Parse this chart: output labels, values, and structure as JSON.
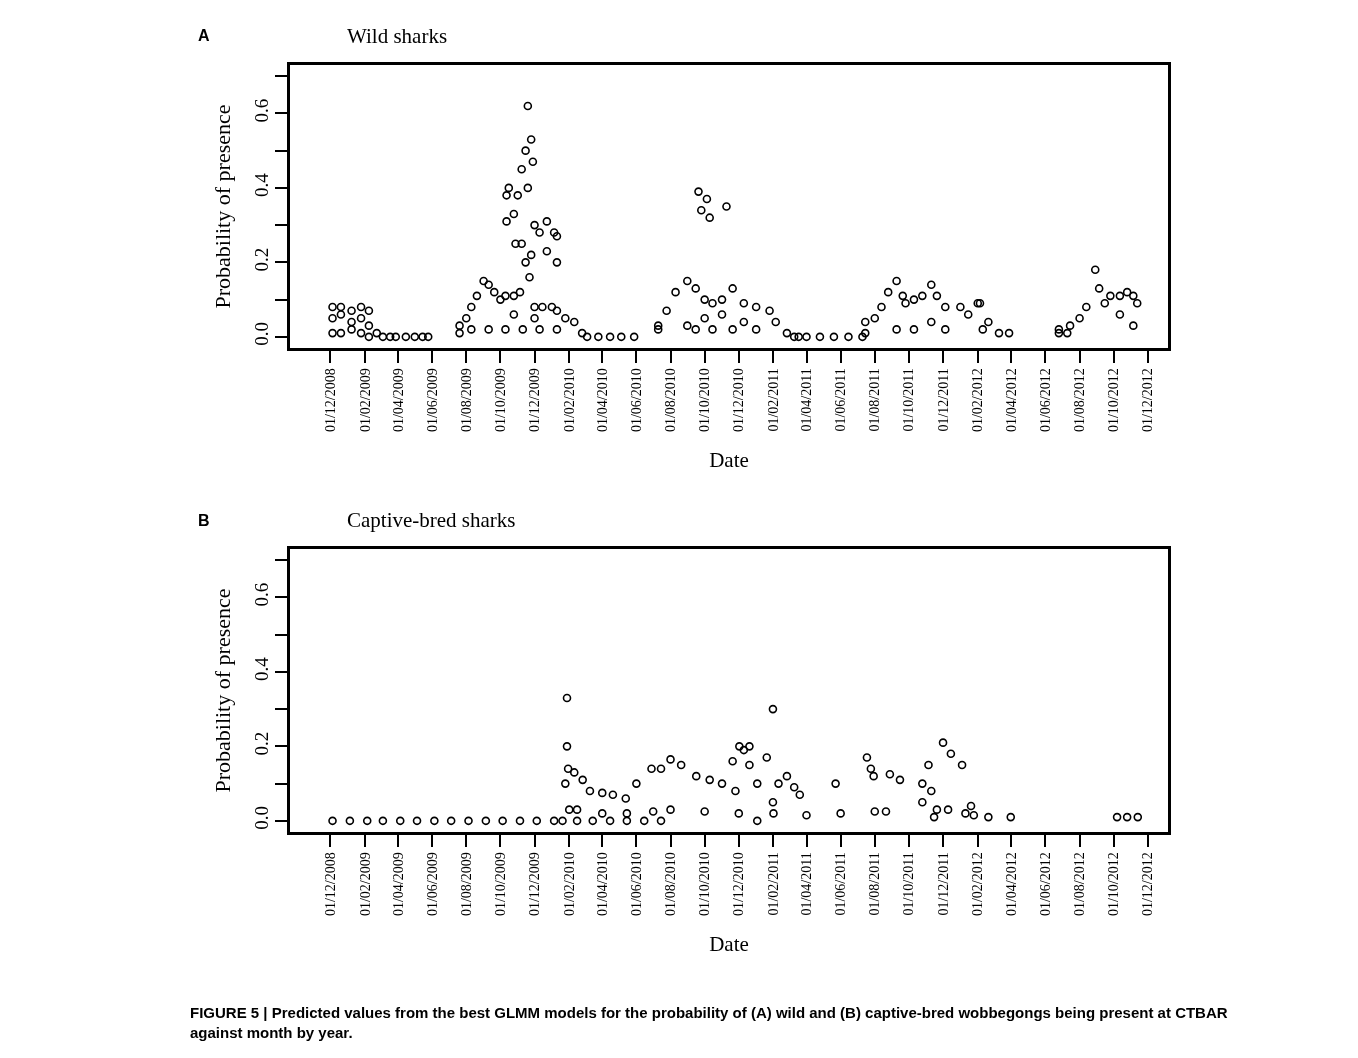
{
  "chart_data": [
    {
      "type": "scatter",
      "title": "Wild sharks",
      "xlabel": "Date",
      "ylabel": "Probability of presence",
      "annotations": [
        "A"
      ],
      "marker": "circle",
      "color": "#000000",
      "xlim": [
        "2008-09-20",
        "2013-01-06"
      ],
      "xticks": [
        {
          "value": "2008-12-01",
          "label": "01/12/2008"
        },
        {
          "value": "2009-02-01",
          "label": "01/02/2009"
        },
        {
          "value": "2009-04-01",
          "label": "01/04/2009"
        },
        {
          "value": "2009-06-01",
          "label": "01/06/2009"
        },
        {
          "value": "2009-08-01",
          "label": "01/08/2009"
        },
        {
          "value": "2009-10-01",
          "label": "01/10/2009"
        },
        {
          "value": "2009-12-01",
          "label": "01/12/2009"
        },
        {
          "value": "2010-02-01",
          "label": "01/02/2010"
        },
        {
          "value": "2010-04-01",
          "label": "01/04/2010"
        },
        {
          "value": "2010-06-01",
          "label": "01/06/2010"
        },
        {
          "value": "2010-08-01",
          "label": "01/08/2010"
        },
        {
          "value": "2010-10-01",
          "label": "01/10/2010"
        },
        {
          "value": "2010-12-01",
          "label": "01/12/2010"
        },
        {
          "value": "2011-02-01",
          "label": "01/02/2011"
        },
        {
          "value": "2011-04-01",
          "label": "01/04/2011"
        },
        {
          "value": "2011-06-01",
          "label": "01/06/2011"
        },
        {
          "value": "2011-08-01",
          "label": "01/08/2011"
        },
        {
          "value": "2011-10-01",
          "label": "01/10/2011"
        },
        {
          "value": "2011-12-01",
          "label": "01/12/2011"
        },
        {
          "value": "2012-02-01",
          "label": "01/02/2012"
        },
        {
          "value": "2012-04-01",
          "label": "01/04/2012"
        },
        {
          "value": "2012-06-01",
          "label": "01/06/2012"
        },
        {
          "value": "2012-08-01",
          "label": "01/08/2012"
        },
        {
          "value": "2012-10-01",
          "label": "01/10/2012"
        },
        {
          "value": "2012-12-01",
          "label": "01/12/2012"
        }
      ],
      "ylim": [
        -0.03,
        0.73
      ],
      "yticks": [
        {
          "value": 0,
          "label": "0.0"
        },
        {
          "value": 0.1,
          "label": null
        },
        {
          "value": 0.2,
          "label": "0.2"
        },
        {
          "value": 0.3,
          "label": null
        },
        {
          "value": 0.4,
          "label": "0.4"
        },
        {
          "value": 0.5,
          "label": null
        },
        {
          "value": 0.6,
          "label": "0.6"
        },
        {
          "value": 0.7,
          "label": null
        }
      ],
      "x": [
        "2008-12-05",
        "2008-12-05",
        "2008-12-05",
        "2008-12-20",
        "2008-12-20",
        "2008-12-20",
        "2009-01-08",
        "2009-01-08",
        "2009-01-08",
        "2009-01-25",
        "2009-01-25",
        "2009-01-25",
        "2009-02-08",
        "2009-02-08",
        "2009-02-08",
        "2009-02-22",
        "2009-03-05",
        "2009-03-18",
        "2009-03-28",
        "2009-04-15",
        "2009-05-01",
        "2009-05-15",
        "2009-05-25",
        "2009-07-20",
        "2009-07-20",
        "2009-08-01",
        "2009-08-10",
        "2009-08-20",
        "2009-09-01",
        "2009-09-10",
        "2009-09-20",
        "2009-10-01",
        "2009-10-10",
        "2009-10-25",
        "2009-11-05",
        "2009-11-15",
        "2009-11-22",
        "2009-12-01",
        "2009-12-15",
        "2010-01-01",
        "2010-01-10",
        "2010-01-25",
        "2010-02-10",
        "2010-02-24",
        "2009-08-10",
        "2009-09-10",
        "2009-10-10",
        "2009-11-10",
        "2009-12-10",
        "2010-01-10",
        "2009-10-25",
        "2009-12-01",
        "2009-10-12",
        "2009-10-12",
        "2009-10-16",
        "2009-10-25",
        "2009-10-28",
        "2009-11-01",
        "2009-11-08",
        "2009-11-08",
        "2009-11-15",
        "2009-11-19",
        "2009-11-19",
        "2009-11-25",
        "2009-11-25",
        "2009-11-28",
        "2009-12-01",
        "2009-12-10",
        "2009-12-23",
        "2009-12-23",
        "2010-01-05",
        "2010-01-10",
        "2010-01-10",
        "2010-03-05",
        "2010-03-25",
        "2010-04-15",
        "2010-05-05",
        "2010-05-28",
        "2010-07-10",
        "2010-07-10",
        "2010-07-25",
        "2010-08-10",
        "2010-08-31",
        "2010-08-31",
        "2010-09-15",
        "2010-09-15",
        "2010-10-01",
        "2010-10-01",
        "2010-10-15",
        "2010-10-15",
        "2010-11-01",
        "2010-11-01",
        "2010-11-20",
        "2010-11-20",
        "2010-12-10",
        "2010-12-10",
        "2011-01-01",
        "2011-01-01",
        "2011-01-25",
        "2011-02-05",
        "2011-02-25",
        "2011-03-10",
        "2011-03-18",
        "2010-09-20",
        "2010-09-25",
        "2010-10-05",
        "2010-10-10",
        "2010-11-09",
        "2011-04-01",
        "2011-04-25",
        "2011-05-20",
        "2011-06-15",
        "2011-07-10",
        "2011-07-15",
        "2011-07-15",
        "2011-08-01",
        "2011-08-13",
        "2011-08-25",
        "2011-09-09",
        "2011-09-09",
        "2011-09-20",
        "2011-09-25",
        "2011-10-10",
        "2011-10-10",
        "2011-10-25",
        "2011-11-10",
        "2011-11-10",
        "2011-11-20",
        "2011-12-05",
        "2011-12-05",
        "2012-01-01",
        "2012-01-15",
        "2012-02-01",
        "2012-02-05",
        "2012-02-10",
        "2012-02-20",
        "2012-03-10",
        "2012-03-28",
        "2012-06-25",
        "2012-06-25",
        "2012-07-10",
        "2012-07-15",
        "2012-08-01",
        "2012-08-13",
        "2012-08-29",
        "2012-09-05",
        "2012-09-15",
        "2012-09-25",
        "2012-10-12",
        "2012-10-12",
        "2012-10-25",
        "2012-11-05",
        "2012-11-05",
        "2012-11-12"
      ],
      "values": [
        0.08,
        0.05,
        0.01,
        0.08,
        0.06,
        0.01,
        0.07,
        0.04,
        0.02,
        0.08,
        0.05,
        0.01,
        0.07,
        0.03,
        0.0,
        0.01,
        0.0,
        0.0,
        0.0,
        0.0,
        0.0,
        0.0,
        0.0,
        0.03,
        0.01,
        0.05,
        0.08,
        0.11,
        0.15,
        0.14,
        0.12,
        0.1,
        0.11,
        0.11,
        0.12,
        0.2,
        0.16,
        0.08,
        0.08,
        0.08,
        0.07,
        0.05,
        0.04,
        0.01,
        0.02,
        0.02,
        0.02,
        0.02,
        0.02,
        0.02,
        0.06,
        0.05,
        0.31,
        0.38,
        0.4,
        0.33,
        0.25,
        0.38,
        0.45,
        0.25,
        0.5,
        0.62,
        0.4,
        0.53,
        0.22,
        0.47,
        0.3,
        0.28,
        0.31,
        0.23,
        0.28,
        0.27,
        0.2,
        0.0,
        0.0,
        0.0,
        0.0,
        0.0,
        0.02,
        0.03,
        0.07,
        0.12,
        0.15,
        0.03,
        0.13,
        0.02,
        0.1,
        0.05,
        0.09,
        0.02,
        0.1,
        0.06,
        0.13,
        0.02,
        0.09,
        0.04,
        0.08,
        0.02,
        0.07,
        0.04,
        0.01,
        0.0,
        0.0,
        0.39,
        0.34,
        0.37,
        0.32,
        0.35,
        0.0,
        0.0,
        0.0,
        0.0,
        0.0,
        0.04,
        0.01,
        0.05,
        0.08,
        0.12,
        0.15,
        0.02,
        0.11,
        0.09,
        0.1,
        0.02,
        0.11,
        0.14,
        0.04,
        0.11,
        0.08,
        0.02,
        0.08,
        0.06,
        0.09,
        0.09,
        0.02,
        0.04,
        0.01,
        0.01,
        0.02,
        0.01,
        0.01,
        0.03,
        0.05,
        0.08,
        0.18,
        0.13,
        0.09,
        0.11,
        0.11,
        0.06,
        0.12,
        0.11,
        0.03,
        0.09
      ]
    },
    {
      "type": "scatter",
      "title": "Captive-bred sharks",
      "xlabel": "Date",
      "ylabel": "Probability of presence",
      "annotations": [
        "B",
        "FIGURE 5 | Predicted values from the best GLMM models for the probability of (A) wild and (B) captive-bred wobbegongs being present at CTBAR against month by year."
      ],
      "marker": "circle",
      "color": "#000000",
      "xlim": [
        "2008-09-20",
        "2013-01-06"
      ],
      "xticks": [
        {
          "value": "2008-12-01",
          "label": "01/12/2008"
        },
        {
          "value": "2009-02-01",
          "label": "01/02/2009"
        },
        {
          "value": "2009-04-01",
          "label": "01/04/2009"
        },
        {
          "value": "2009-06-01",
          "label": "01/06/2009"
        },
        {
          "value": "2009-08-01",
          "label": "01/08/2009"
        },
        {
          "value": "2009-10-01",
          "label": "01/10/2009"
        },
        {
          "value": "2009-12-01",
          "label": "01/12/2009"
        },
        {
          "value": "2010-02-01",
          "label": "01/02/2010"
        },
        {
          "value": "2010-04-01",
          "label": "01/04/2010"
        },
        {
          "value": "2010-06-01",
          "label": "01/06/2010"
        },
        {
          "value": "2010-08-01",
          "label": "01/08/2010"
        },
        {
          "value": "2010-10-01",
          "label": "01/10/2010"
        },
        {
          "value": "2010-12-01",
          "label": "01/12/2010"
        },
        {
          "value": "2011-02-01",
          "label": "01/02/2011"
        },
        {
          "value": "2011-04-01",
          "label": "01/04/2011"
        },
        {
          "value": "2011-06-01",
          "label": "01/06/2011"
        },
        {
          "value": "2011-08-01",
          "label": "01/08/2011"
        },
        {
          "value": "2011-10-01",
          "label": "01/10/2011"
        },
        {
          "value": "2011-12-01",
          "label": "01/12/2011"
        },
        {
          "value": "2012-02-01",
          "label": "01/02/2012"
        },
        {
          "value": "2012-04-01",
          "label": "01/04/2012"
        },
        {
          "value": "2012-06-01",
          "label": "01/06/2012"
        },
        {
          "value": "2012-08-01",
          "label": "01/08/2012"
        },
        {
          "value": "2012-10-01",
          "label": "01/10/2012"
        },
        {
          "value": "2012-12-01",
          "label": "01/12/2012"
        }
      ],
      "ylim": [
        -0.03,
        0.73
      ],
      "yticks": [
        {
          "value": 0,
          "label": "0.0"
        },
        {
          "value": 0.1,
          "label": null
        },
        {
          "value": 0.2,
          "label": "0.2"
        },
        {
          "value": 0.3,
          "label": null
        },
        {
          "value": 0.4,
          "label": "0.4"
        },
        {
          "value": 0.5,
          "label": null
        },
        {
          "value": 0.6,
          "label": "0.6"
        },
        {
          "value": 0.7,
          "label": null
        }
      ],
      "x": [
        "2008-12-05",
        "2009-01-05",
        "2009-02-05",
        "2009-03-05",
        "2009-04-05",
        "2009-05-05",
        "2009-06-05",
        "2009-07-05",
        "2009-08-05",
        "2009-09-05",
        "2009-10-05",
        "2009-11-05",
        "2009-12-05",
        "2010-01-05",
        "2010-01-20",
        "2010-01-25",
        "2010-01-28",
        "2010-01-28",
        "2010-01-30",
        "2010-02-01",
        "2010-02-10",
        "2010-02-25",
        "2010-03-10",
        "2010-04-01",
        "2010-04-20",
        "2010-05-13",
        "2010-06-01",
        "2010-06-28",
        "2010-07-15",
        "2010-08-01",
        "2010-08-20",
        "2010-09-16",
        "2010-10-10",
        "2010-11-01",
        "2010-11-20",
        "2010-11-25",
        "2010-02-15",
        "2010-04-01",
        "2010-05-15",
        "2010-07-01",
        "2010-08-01",
        "2010-10-01",
        "2010-12-01",
        "2011-02-01",
        "2011-04-01",
        "2011-06-01",
        "2011-08-01",
        "2011-08-21",
        "2010-02-15",
        "2010-03-15",
        "2010-04-15",
        "2010-05-15",
        "2010-06-15",
        "2010-07-15",
        "2010-12-02",
        "2010-12-10",
        "2010-12-20",
        "2010-12-20",
        "2011-01-03",
        "2011-01-03",
        "2011-01-20",
        "2011-01-31",
        "2011-01-31",
        "2011-02-10",
        "2011-02-25",
        "2011-03-10",
        "2011-03-20",
        "2011-05-23",
        "2011-07-18",
        "2011-07-25",
        "2011-07-30",
        "2011-08-28",
        "2011-09-15",
        "2011-10-25",
        "2011-10-25",
        "2011-11-05",
        "2011-11-10",
        "2011-11-15",
        "2011-11-20",
        "2011-12-01",
        "2011-12-15",
        "2012-01-04",
        "2011-12-10",
        "2012-01-10",
        "2012-01-20",
        "2012-01-25",
        "2012-02-20",
        "2012-03-31",
        "2012-10-07",
        "2012-10-25",
        "2012-11-13"
      ],
      "values": [
        0.0,
        0.0,
        0.0,
        0.0,
        0.0,
        0.0,
        0.0,
        0.0,
        0.0,
        0.0,
        0.0,
        0.0,
        0.0,
        0.0,
        0.0,
        0.1,
        0.33,
        0.2,
        0.14,
        0.03,
        0.13,
        0.11,
        0.08,
        0.075,
        0.07,
        0.06,
        0.1,
        0.14,
        0.14,
        0.165,
        0.15,
        0.12,
        0.11,
        0.1,
        0.16,
        0.08,
        0.03,
        0.02,
        0.02,
        0.025,
        0.03,
        0.025,
        0.02,
        0.02,
        0.015,
        0.02,
        0.025,
        0.025,
        0.0,
        0.0,
        0.0,
        0.0,
        0.0,
        0.0,
        0.2,
        0.19,
        0.2,
        0.15,
        0.0,
        0.1,
        0.17,
        0.3,
        0.05,
        0.1,
        0.12,
        0.09,
        0.07,
        0.1,
        0.17,
        0.14,
        0.12,
        0.125,
        0.11,
        0.1,
        0.05,
        0.15,
        0.08,
        0.01,
        0.03,
        0.21,
        0.18,
        0.15,
        0.03,
        0.02,
        0.04,
        0.015,
        0.01,
        0.01,
        0.01,
        0.01,
        0.01
      ]
    }
  ]
}
